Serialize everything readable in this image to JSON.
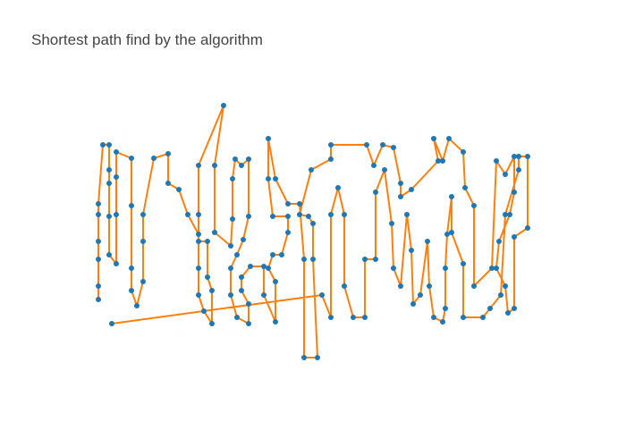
{
  "chart_data": {
    "type": "scatter",
    "title": "Shortest path find by the algorithm",
    "line_color": "#ff7f0e",
    "marker_color": "#1f77b4",
    "xlim": [
      80,
      620
    ],
    "ylim": [
      80,
      400
    ],
    "x": [
      110,
      110,
      110,
      110,
      110,
      110,
      115,
      122,
      122,
      122,
      122,
      122,
      130,
      130,
      130,
      130,
      147,
      147,
      147,
      147,
      153,
      160,
      160,
      160,
      172,
      188,
      188,
      200,
      210,
      222,
      222,
      222,
      228,
      237,
      237,
      232,
      232,
      222,
      222,
      222,
      250,
      240,
      240,
      258,
      260,
      260,
      263,
      270,
      278,
      278,
      272,
      265,
      258,
      258,
      265,
      278,
      278,
      270,
      270,
      280,
      295,
      295,
      308,
      308,
      300,
      305,
      315,
      322,
      322,
      305,
      300,
      300,
      308,
      322,
      335,
      340,
      340,
      355,
      350,
      350,
      345,
      335,
      348,
      370,
      370,
      410,
      418,
      428,
      440,
      448,
      448,
      460,
      490,
      485,
      495,
      502,
      518,
      520,
      530,
      530,
      550,
      555,
      565,
      575,
      575,
      570,
      558,
      555,
      565,
      568,
      575,
      575,
      590,
      590,
      580,
      580,
      565,
      560,
      548,
      540,
      518,
      518,
      505,
      505,
      500,
      498,
      498,
      495,
      485,
      480,
      478,
      470,
      462,
      460,
      455,
      448,
      440,
      438,
      430,
      420,
      420,
      408,
      408,
      395,
      385,
      385,
      378,
      370,
      370,
      360,
      125
    ],
    "y": [
      165,
      180,
      210,
      230,
      260,
      272,
      338,
      338,
      310,
      295,
      258,
      215,
      205,
      260,
      302,
      330,
      323,
      270,
      200,
      175,
      158,
      185,
      230,
      260,
      323,
      328,
      295,
      288,
      260,
      238,
      200,
      170,
      152,
      138,
      175,
      190,
      230,
      230,
      260,
      315,
      382,
      315,
      240,
      225,
      255,
      300,
      322,
      315,
      322,
      258,
      232,
      215,
      200,
      170,
      145,
      138,
      160,
      175,
      190,
      202,
      202,
      170,
      140,
      185,
      200,
      215,
      215,
      240,
      258,
      258,
      300,
      345,
      300,
      272,
      272,
      210,
      100,
      100,
      210,
      250,
      258,
      260,
      310,
      322,
      338,
      338,
      315,
      338,
      335,
      295,
      280,
      288,
      320,
      345,
      320,
      345,
      330,
      290,
      270,
      180,
      200,
      320,
      305,
      325,
      285,
      260,
      230,
      200,
      180,
      150,
      155,
      235,
      245,
      325,
      325,
      310,
      260,
      170,
      155,
      145,
      145,
      205,
      240,
      280,
      238,
      200,
      155,
      140,
      145,
      180,
      230,
      170,
      160,
      220,
      260,
      180,
      200,
      250,
      310,
      285,
      210,
      210,
      145,
      145,
      180,
      260,
      290,
      260,
      145,
      170,
      138
    ]
  }
}
